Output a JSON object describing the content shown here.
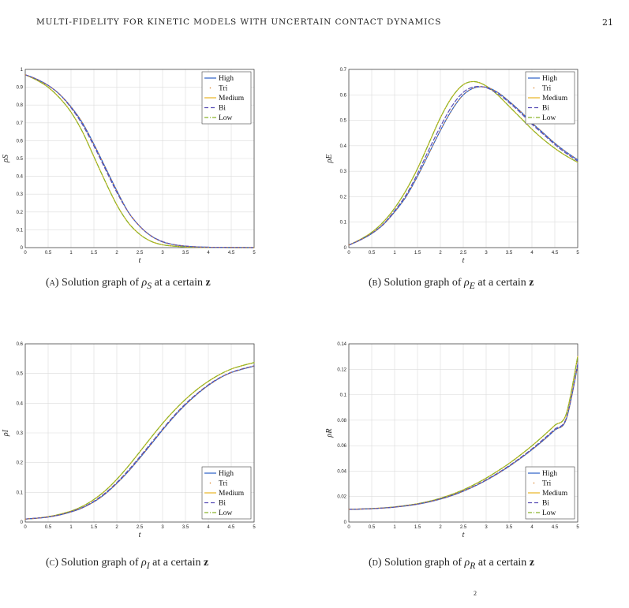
{
  "header": {
    "title": "MULTI-FIDELITY FOR KINETIC MODELS WITH UNCERTAIN CONTACT DYNAMICS",
    "page_number": "21"
  },
  "footer_fragment": "2",
  "colors": {
    "high": "#2a5fc6",
    "tri": "#d9822b",
    "medium": "#e9b322",
    "bi": "#5a4fb5",
    "low": "#8ab52a",
    "grid": "#dcdcdc",
    "axes": "#333333"
  },
  "figures": [
    {
      "id": "a",
      "caption": {
        "label": "(a)",
        "text_before": "Solution graph of",
        "symbol": "ρ",
        "subscript": "S",
        "text_after": "at a certain",
        "bold": "z"
      },
      "ylabel": "ρS"
    },
    {
      "id": "b",
      "caption": {
        "label": "(b)",
        "text_before": "Solution graph of",
        "symbol": "ρ",
        "subscript": "E",
        "text_after": "at a certain",
        "bold": "z"
      },
      "ylabel": "ρE"
    },
    {
      "id": "c",
      "caption": {
        "label": "(c)",
        "text_before": "Solution graph of",
        "symbol": "ρ",
        "subscript": "I",
        "text_after": "at a certain",
        "bold": "z"
      },
      "ylabel": "ρI"
    },
    {
      "id": "d",
      "caption": {
        "label": "(d)",
        "text_before": "Solution graph of",
        "symbol": "ρ",
        "subscript": "R",
        "text_after": "at a certain",
        "bold": "z"
      },
      "ylabel": "ρR"
    }
  ],
  "chart_data": [
    {
      "type": "line",
      "xlabel": "t",
      "ylabel": "ρS",
      "xlim": [
        0,
        5
      ],
      "ylim": [
        0,
        1
      ],
      "xticks": [
        0,
        0.5,
        1,
        1.5,
        2,
        2.5,
        3,
        3.5,
        4,
        4.5,
        5
      ],
      "yticks": [
        0,
        0.1,
        0.2,
        0.3,
        0.4,
        0.5,
        0.6,
        0.7,
        0.8,
        0.9,
        1
      ],
      "xtick_labels": [
        "0",
        "0.5",
        "1",
        "1.5",
        "2",
        "2.5",
        "3",
        "3.5",
        "4",
        "4.5",
        "5"
      ],
      "ytick_labels": [
        "0",
        "0.1",
        "0.2",
        "0.3",
        "0.4",
        "0.5",
        "0.6",
        "0.7",
        "0.8",
        "0.9",
        "1"
      ],
      "grid": true,
      "legend": "top-right",
      "x": [
        0,
        0.25,
        0.5,
        0.75,
        1,
        1.25,
        1.5,
        1.75,
        2,
        2.25,
        2.5,
        2.75,
        3,
        3.25,
        3.5,
        3.75,
        4,
        4.5,
        5
      ],
      "series": [
        {
          "name": "High",
          "style": "solid",
          "values": [
            0.97,
            0.945,
            0.91,
            0.86,
            0.79,
            0.7,
            0.58,
            0.45,
            0.32,
            0.2,
            0.12,
            0.065,
            0.032,
            0.016,
            0.008,
            0.004,
            0.002,
            0.001,
            0.0
          ]
        },
        {
          "name": "Tri",
          "style": "dots",
          "values": [
            0.97,
            0.945,
            0.91,
            0.86,
            0.79,
            0.7,
            0.58,
            0.45,
            0.32,
            0.2,
            0.12,
            0.065,
            0.032,
            0.016,
            0.008,
            0.004,
            0.002,
            0.001,
            0.0
          ]
        },
        {
          "name": "Medium",
          "style": "solid",
          "values": [
            0.97,
            0.94,
            0.9,
            0.84,
            0.76,
            0.65,
            0.51,
            0.37,
            0.24,
            0.14,
            0.075,
            0.035,
            0.016,
            0.008,
            0.004,
            0.002,
            0.001,
            0.0,
            0.0
          ]
        },
        {
          "name": "Bi",
          "style": "dashed",
          "values": [
            0.97,
            0.945,
            0.91,
            0.86,
            0.785,
            0.69,
            0.57,
            0.44,
            0.31,
            0.2,
            0.12,
            0.066,
            0.034,
            0.017,
            0.009,
            0.004,
            0.002,
            0.001,
            0.0
          ]
        },
        {
          "name": "Low",
          "style": "dashdot",
          "values": [
            0.97,
            0.94,
            0.9,
            0.84,
            0.76,
            0.65,
            0.51,
            0.37,
            0.24,
            0.14,
            0.075,
            0.035,
            0.016,
            0.008,
            0.004,
            0.002,
            0.001,
            0.0,
            0.0
          ]
        }
      ]
    },
    {
      "type": "line",
      "xlabel": "t",
      "ylabel": "ρE",
      "xlim": [
        0,
        5
      ],
      "ylim": [
        0,
        0.7
      ],
      "xticks": [
        0,
        0.5,
        1,
        1.5,
        2,
        2.5,
        3,
        3.5,
        4,
        4.5,
        5
      ],
      "yticks": [
        0,
        0.1,
        0.2,
        0.3,
        0.4,
        0.5,
        0.6,
        0.7
      ],
      "xtick_labels": [
        "0",
        "0.5",
        "1",
        "1.5",
        "2",
        "2.5",
        "3",
        "3.5",
        "4",
        "4.5",
        "5"
      ],
      "ytick_labels": [
        "0",
        "0.1",
        "0.2",
        "0.3",
        "0.4",
        "0.5",
        "0.6",
        "0.7"
      ],
      "grid": true,
      "legend": "top-right",
      "x": [
        0,
        0.25,
        0.5,
        0.75,
        1,
        1.25,
        1.5,
        1.75,
        2,
        2.25,
        2.5,
        2.75,
        3,
        3.25,
        3.5,
        3.75,
        4,
        4.25,
        4.5,
        4.75,
        5
      ],
      "series": [
        {
          "name": "High",
          "style": "solid",
          "values": [
            0.01,
            0.03,
            0.055,
            0.09,
            0.14,
            0.2,
            0.28,
            0.37,
            0.46,
            0.54,
            0.6,
            0.628,
            0.63,
            0.61,
            0.575,
            0.535,
            0.49,
            0.45,
            0.41,
            0.375,
            0.345
          ]
        },
        {
          "name": "Tri",
          "style": "dots",
          "values": [
            0.01,
            0.03,
            0.055,
            0.09,
            0.14,
            0.2,
            0.28,
            0.37,
            0.46,
            0.54,
            0.6,
            0.628,
            0.63,
            0.61,
            0.575,
            0.535,
            0.49,
            0.45,
            0.41,
            0.375,
            0.345
          ]
        },
        {
          "name": "Medium",
          "style": "solid",
          "values": [
            0.01,
            0.032,
            0.06,
            0.1,
            0.155,
            0.225,
            0.31,
            0.41,
            0.51,
            0.59,
            0.64,
            0.652,
            0.635,
            0.6,
            0.555,
            0.51,
            0.465,
            0.425,
            0.39,
            0.36,
            0.335
          ]
        },
        {
          "name": "Bi",
          "style": "dashed",
          "values": [
            0.01,
            0.03,
            0.056,
            0.092,
            0.145,
            0.207,
            0.29,
            0.385,
            0.475,
            0.555,
            0.61,
            0.632,
            0.628,
            0.605,
            0.57,
            0.53,
            0.485,
            0.445,
            0.405,
            0.37,
            0.34
          ]
        },
        {
          "name": "Low",
          "style": "dashdot",
          "values": [
            0.01,
            0.032,
            0.06,
            0.1,
            0.155,
            0.225,
            0.31,
            0.41,
            0.51,
            0.59,
            0.64,
            0.652,
            0.635,
            0.6,
            0.555,
            0.51,
            0.465,
            0.425,
            0.39,
            0.36,
            0.335
          ]
        }
      ]
    },
    {
      "type": "line",
      "xlabel": "t",
      "ylabel": "ρI",
      "xlim": [
        0,
        5
      ],
      "ylim": [
        0,
        0.6
      ],
      "xticks": [
        0,
        0.5,
        1,
        1.5,
        2,
        2.5,
        3,
        3.5,
        4,
        4.5,
        5
      ],
      "yticks": [
        0,
        0.1,
        0.2,
        0.3,
        0.4,
        0.5,
        0.6
      ],
      "xtick_labels": [
        "0",
        "0.5",
        "1",
        "1.5",
        "2",
        "2.5",
        "3",
        "3.5",
        "4",
        "4.5",
        "5"
      ],
      "ytick_labels": [
        "0",
        "0.1",
        "0.2",
        "0.3",
        "0.4",
        "0.5",
        "0.6"
      ],
      "grid": true,
      "legend": "bottom-right",
      "x": [
        0,
        0.25,
        0.5,
        0.75,
        1,
        1.25,
        1.5,
        1.75,
        2,
        2.25,
        2.5,
        2.75,
        3,
        3.25,
        3.5,
        3.75,
        4,
        4.25,
        4.5,
        4.75,
        5
      ],
      "series": [
        {
          "name": "High",
          "style": "solid",
          "values": [
            0.01,
            0.013,
            0.017,
            0.024,
            0.034,
            0.048,
            0.068,
            0.095,
            0.13,
            0.17,
            0.215,
            0.262,
            0.31,
            0.355,
            0.395,
            0.43,
            0.46,
            0.485,
            0.503,
            0.515,
            0.525
          ]
        },
        {
          "name": "Tri",
          "style": "dots",
          "values": [
            0.01,
            0.013,
            0.017,
            0.024,
            0.034,
            0.048,
            0.068,
            0.095,
            0.13,
            0.17,
            0.215,
            0.262,
            0.31,
            0.355,
            0.395,
            0.43,
            0.46,
            0.485,
            0.503,
            0.515,
            0.525
          ]
        },
        {
          "name": "Medium",
          "style": "solid",
          "values": [
            0.01,
            0.013,
            0.018,
            0.026,
            0.037,
            0.053,
            0.076,
            0.106,
            0.144,
            0.188,
            0.236,
            0.285,
            0.332,
            0.375,
            0.413,
            0.446,
            0.474,
            0.497,
            0.515,
            0.527,
            0.537
          ]
        },
        {
          "name": "Bi",
          "style": "dashed",
          "values": [
            0.01,
            0.013,
            0.017,
            0.024,
            0.035,
            0.049,
            0.07,
            0.098,
            0.133,
            0.174,
            0.219,
            0.266,
            0.313,
            0.358,
            0.398,
            0.432,
            0.462,
            0.486,
            0.504,
            0.516,
            0.526
          ]
        },
        {
          "name": "Low",
          "style": "dashdot",
          "values": [
            0.01,
            0.013,
            0.018,
            0.026,
            0.037,
            0.053,
            0.076,
            0.106,
            0.144,
            0.188,
            0.236,
            0.285,
            0.332,
            0.375,
            0.413,
            0.446,
            0.474,
            0.497,
            0.515,
            0.527,
            0.537
          ]
        }
      ]
    },
    {
      "type": "line",
      "xlabel": "t",
      "ylabel": "ρR",
      "xlim": [
        0,
        5
      ],
      "ylim": [
        0,
        0.14
      ],
      "xticks": [
        0,
        0.5,
        1,
        1.5,
        2,
        2.5,
        3,
        3.5,
        4,
        4.5,
        5
      ],
      "yticks": [
        0,
        0.02,
        0.04,
        0.06,
        0.08,
        0.1,
        0.12,
        0.14
      ],
      "xtick_labels": [
        "0",
        "0.5",
        "1",
        "1.5",
        "2",
        "2.5",
        "3",
        "3.5",
        "4",
        "4.5",
        "5"
      ],
      "ytick_labels": [
        "0",
        "0.02",
        "0.04",
        "0.06",
        "0.08",
        "0.1",
        "0.12",
        "0.14"
      ],
      "grid": true,
      "legend": "bottom-right",
      "x": [
        0,
        0.25,
        0.5,
        0.75,
        1,
        1.25,
        1.5,
        1.75,
        2,
        2.25,
        2.5,
        2.75,
        3,
        3.25,
        3.5,
        3.75,
        4,
        4.25,
        4.5,
        4.75,
        5
      ],
      "series": [
        {
          "name": "High",
          "style": "solid",
          "values": [
            0.01,
            0.0102,
            0.0105,
            0.011,
            0.0117,
            0.0127,
            0.014,
            0.0158,
            0.018,
            0.0208,
            0.0242,
            0.0282,
            0.0328,
            0.038,
            0.0437,
            0.05,
            0.0568,
            0.0642,
            0.0722,
            0.0808,
            0.123
          ]
        },
        {
          "name": "Tri",
          "style": "dots",
          "values": [
            0.01,
            0.0102,
            0.0105,
            0.011,
            0.0117,
            0.0127,
            0.014,
            0.0158,
            0.018,
            0.0208,
            0.0242,
            0.0282,
            0.0328,
            0.038,
            0.0437,
            0.05,
            0.0568,
            0.0642,
            0.0722,
            0.0808,
            0.123
          ]
        },
        {
          "name": "Medium",
          "style": "solid",
          "values": [
            0.01,
            0.0102,
            0.0106,
            0.0111,
            0.0119,
            0.013,
            0.0144,
            0.0163,
            0.0187,
            0.0217,
            0.0253,
            0.0296,
            0.0345,
            0.04,
            0.046,
            0.0527,
            0.0599,
            0.0677,
            0.076,
            0.0849,
            0.13
          ]
        },
        {
          "name": "Bi",
          "style": "dashed",
          "values": [
            0.01,
            0.0102,
            0.0105,
            0.011,
            0.0117,
            0.0128,
            0.0141,
            0.0159,
            0.0182,
            0.021,
            0.0245,
            0.0285,
            0.0332,
            0.0384,
            0.0442,
            0.0506,
            0.0575,
            0.065,
            0.073,
            0.0816,
            0.124
          ]
        },
        {
          "name": "Low",
          "style": "dashdot",
          "values": [
            0.01,
            0.0102,
            0.0106,
            0.0111,
            0.0119,
            0.013,
            0.0144,
            0.0163,
            0.0187,
            0.0217,
            0.0253,
            0.0296,
            0.0345,
            0.04,
            0.046,
            0.0527,
            0.0599,
            0.0677,
            0.076,
            0.0849,
            0.13
          ]
        }
      ]
    }
  ]
}
